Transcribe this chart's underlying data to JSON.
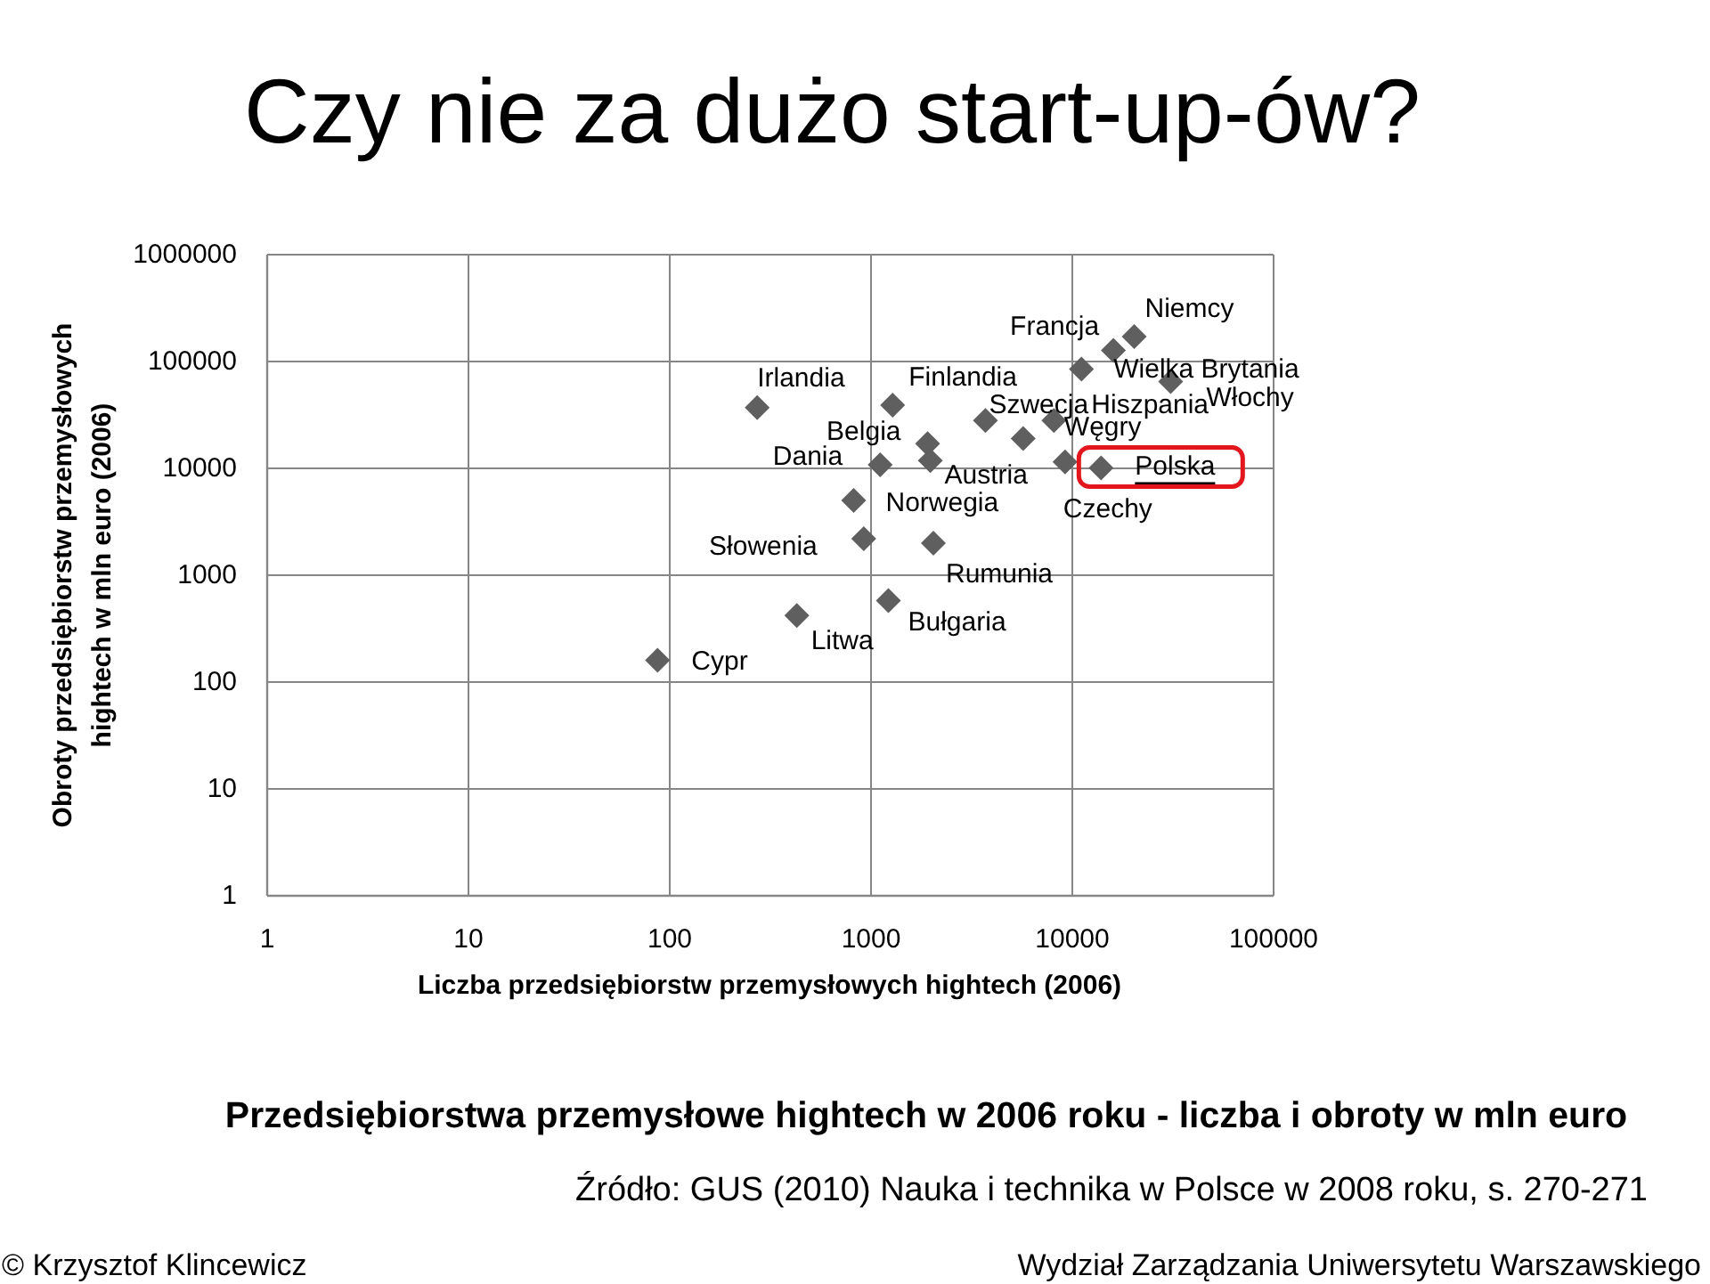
{
  "chart_data": {
    "type": "scatter",
    "title": "Czy nie za dużo start-up-ów?",
    "xlabel": "Liczba przedsiębiorstw przemysłowych hightech (2006)",
    "ylabel": "Obroty przedsiębiorstw przemysłowych hightech w mln euro (2006)",
    "x": [
      87,
      428,
      272,
      920,
      820,
      1220,
      1110,
      1280,
      1910,
      1970,
      2040,
      3700,
      5700,
      8100,
      9200,
      13900,
      11100,
      16000,
      20300,
      30800
    ],
    "series": [
      {
        "color": "#5f5f5f",
        "values": [
          160,
          420,
          37000,
          2200,
          5000,
          580,
          10800,
          39000,
          17000,
          11800,
          2000,
          28000,
          19000,
          28000,
          11500,
          10100,
          85000,
          127000,
          171000,
          65000
        ]
      }
    ],
    "xlim": [
      1,
      100000
    ],
    "ylim": [
      1,
      1000000
    ],
    "xticks": [
      1,
      10,
      100,
      1000,
      10000,
      100000
    ],
    "yticks": [
      1,
      10,
      100,
      1000,
      10000,
      100000,
      1000000
    ],
    "log": "xy",
    "grid": true,
    "marker": "diamond",
    "annotations": [
      {
        "text": "Cypr",
        "x": 87,
        "y": 160
      },
      {
        "text": "Litwa",
        "x": 428,
        "y": 420
      },
      {
        "text": "Irlandia",
        "x": 272,
        "y": 37000
      },
      {
        "text": "Słowenia",
        "x": 920,
        "y": 2200
      },
      {
        "text": "Norwegia",
        "x": 820,
        "y": 5000
      },
      {
        "text": "Bułgaria",
        "x": 1220,
        "y": 580
      },
      {
        "text": "Dania",
        "x": 1110,
        "y": 10800
      },
      {
        "text": "Finlandia",
        "x": 1280,
        "y": 39000
      },
      {
        "text": "Belgia",
        "x": 1910,
        "y": 17000
      },
      {
        "text": "Austria",
        "x": 1970,
        "y": 11800
      },
      {
        "text": "Rumunia",
        "x": 2040,
        "y": 2000
      },
      {
        "text": "Szwecja",
        "x": 3700,
        "y": 28000
      },
      {
        "text": "Węgry",
        "x": 5700,
        "y": 19000
      },
      {
        "text": "Hiszpania",
        "x": 8100,
        "y": 28000
      },
      {
        "text": "Czechy",
        "x": 9200,
        "y": 11500
      },
      {
        "text": "Polska",
        "x": 13900,
        "y": 10100
      },
      {
        "text": "Wielka Brytania",
        "x": 11100,
        "y": 85000
      },
      {
        "text": "Francja",
        "x": 16000,
        "y": 127000
      },
      {
        "text": "Niemcy",
        "x": 20300,
        "y": 171000
      },
      {
        "text": "Włochy",
        "x": 30800,
        "y": 65000
      },
      "Przedsiębiorstwa przemysłowe hightech w 2006 roku - liczba i obroty w mln euro",
      "Źródło: GUS (2010) Nauka i technika w Polsce w 2008 roku, s. 270-271",
      "© Krzysztof Klincewicz",
      "Wydział Zarządzania Uniwersytetu Warszawskiego"
    ]
  }
}
